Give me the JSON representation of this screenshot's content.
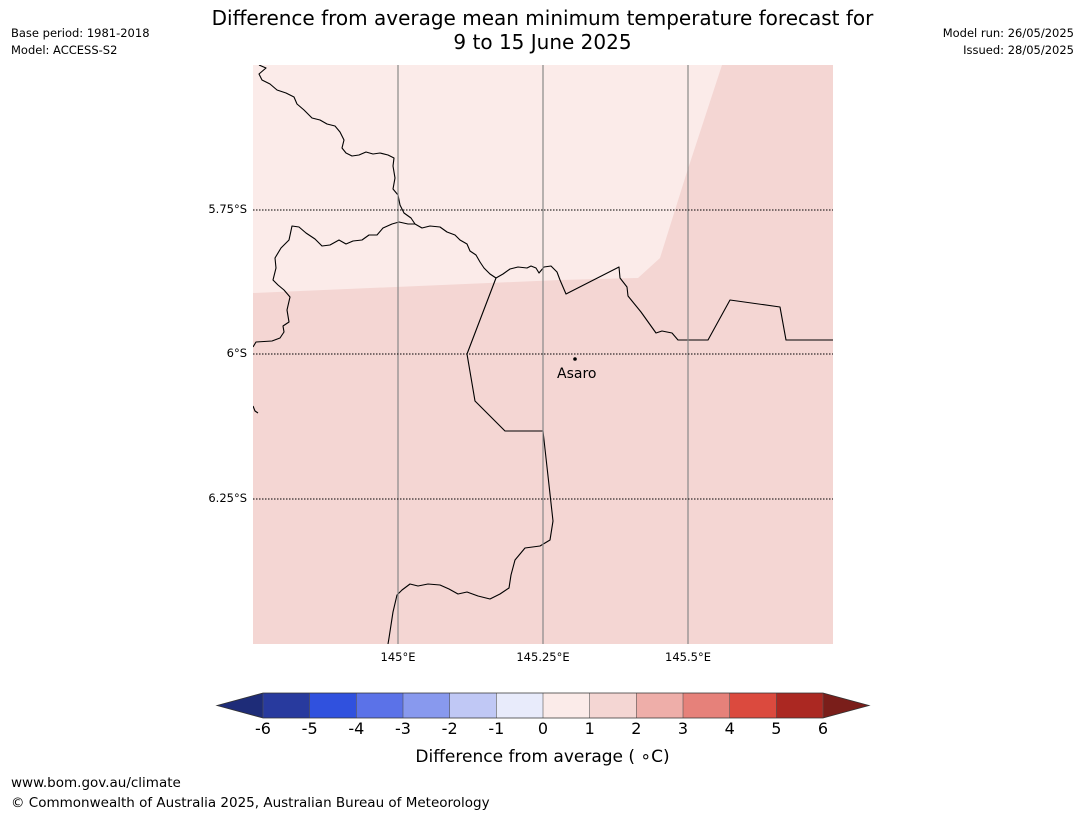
{
  "header": {
    "title_line1": "Difference from average mean minimum temperature forecast for",
    "title_line2": "9 to 15 June 2025",
    "base_period": "Base period: 1981-2018",
    "model": "Model: ACCESS-S2",
    "model_run": "Model run: 26/05/2025",
    "issued": "Issued: 28/05/2025"
  },
  "map": {
    "lat_labels": [
      "5.75°S",
      "6°S",
      "6.25°S"
    ],
    "lon_labels": [
      "145°E",
      "145.25°E",
      "145.5°E"
    ],
    "place": {
      "name": "Asaro"
    },
    "fill_colors": {
      "zero_to_one": "#fbebe9",
      "one_to_two": "#f4d6d3"
    }
  },
  "colorbar": {
    "ticks": [
      "-6",
      "-5",
      "-4",
      "-3",
      "-2",
      "-1",
      "0",
      "1",
      "2",
      "3",
      "4",
      "5",
      "6"
    ],
    "colors": [
      "#283a9e",
      "#3051de",
      "#5b72e8",
      "#8899ee",
      "#c0c8f5",
      "#e8ebfb",
      "#fbebe9",
      "#f4d6d3",
      "#eeaea9",
      "#e6817a",
      "#db4a3e",
      "#ab2822"
    ],
    "under_color": "#1e2c78",
    "over_color": "#7a1e1a",
    "label": "Difference from average ( ∘C)"
  },
  "footer": {
    "url": "www.bom.gov.au/climate",
    "copyright": "© Commonwealth of Australia 2025, Australian Bureau of Meteorology"
  }
}
